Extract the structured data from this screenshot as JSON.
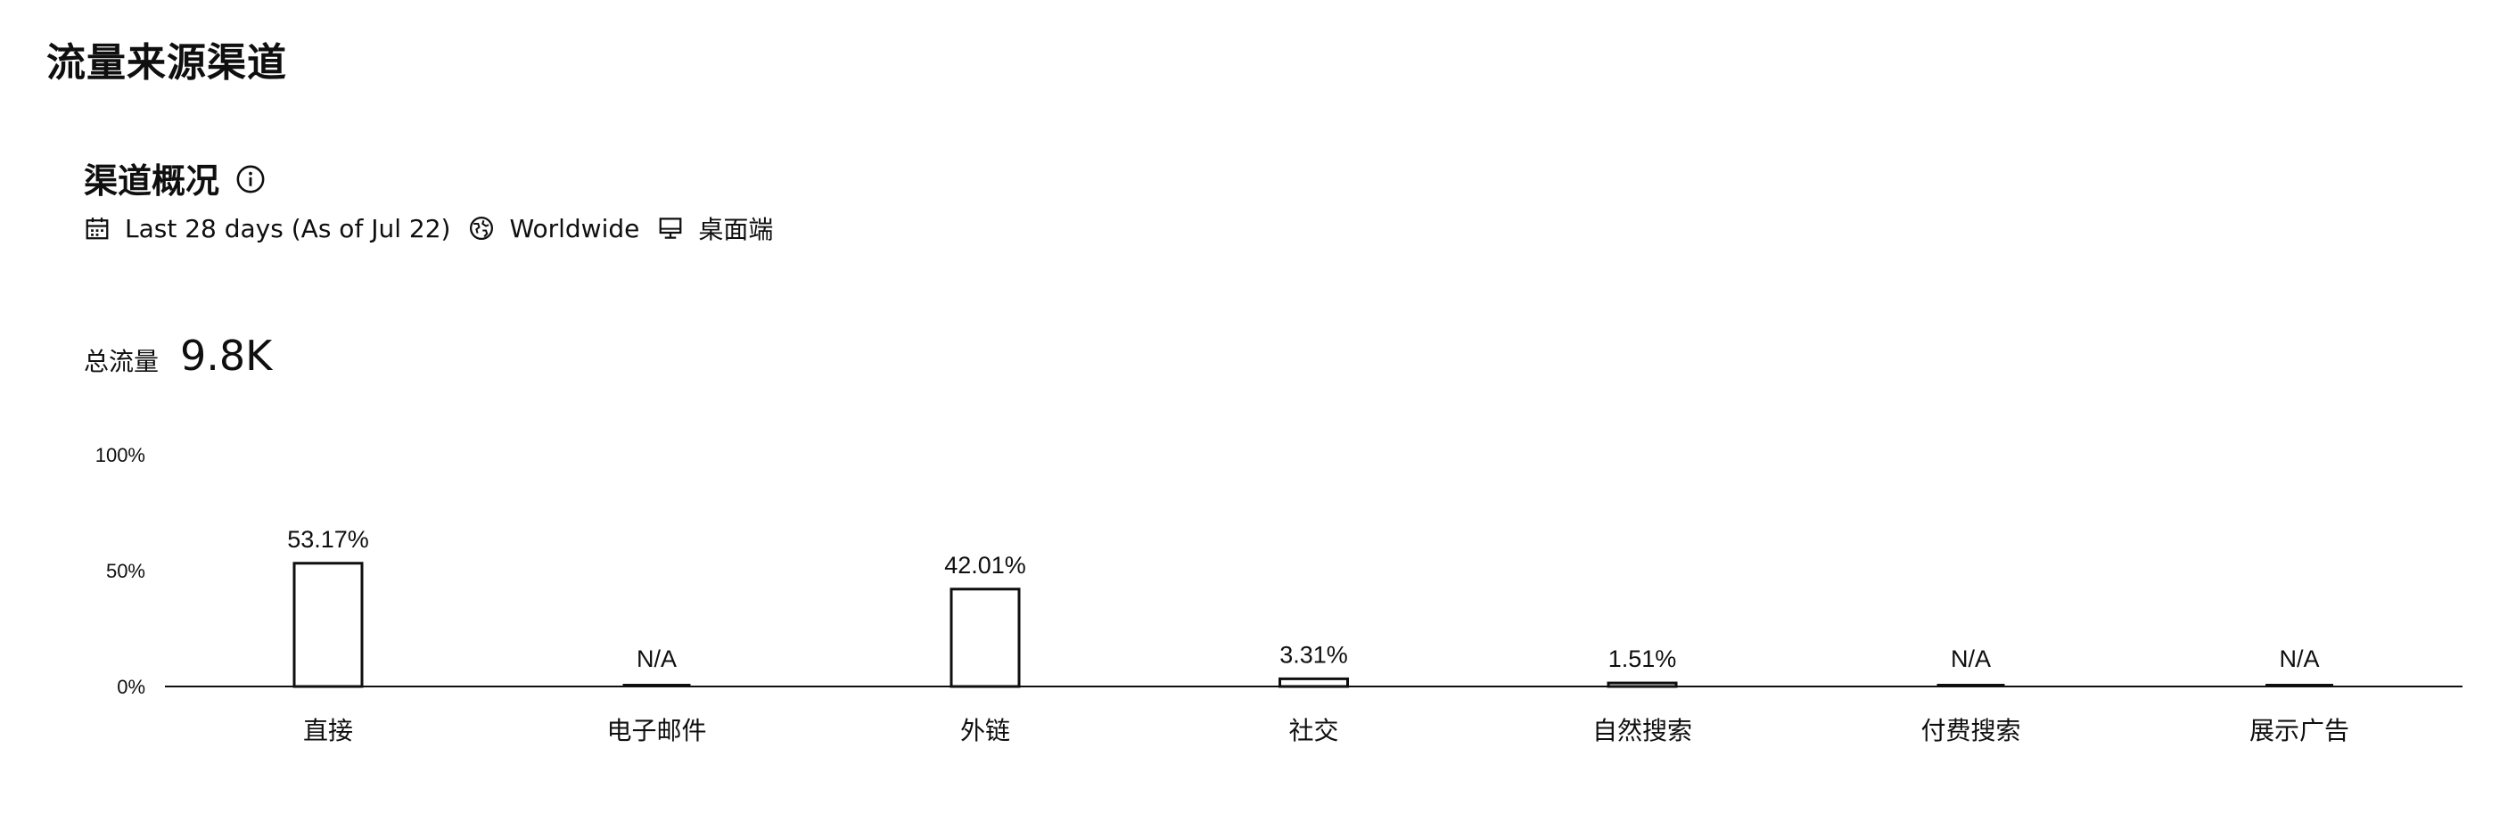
{
  "header": {
    "title": "流量来源渠道"
  },
  "overview": {
    "title": "渠道概况",
    "filters": {
      "date_range": "Last 28 days (As of Jul 22)",
      "region": "Worldwide",
      "device": "桌面端"
    },
    "total_label": "总流量",
    "total_value": "9.8K"
  },
  "colors": {
    "bar_fill": "#ffffff",
    "bar_stroke": "#0f0f0f",
    "baseline": "#0f0f0f"
  },
  "chart_data": {
    "type": "bar",
    "categories": [
      "直接",
      "电子邮件",
      "外链",
      "社交",
      "自然搜索",
      "付费搜索",
      "展示广告"
    ],
    "values": [
      53.17,
      null,
      42.01,
      3.31,
      1.51,
      null,
      null
    ],
    "value_labels": [
      "53.17%",
      "N/A",
      "42.01%",
      "3.31%",
      "1.51%",
      "N/A",
      "N/A"
    ],
    "y_ticks": [
      "0%",
      "50%",
      "100%"
    ],
    "ylim": [
      0,
      100
    ],
    "grid": false
  }
}
